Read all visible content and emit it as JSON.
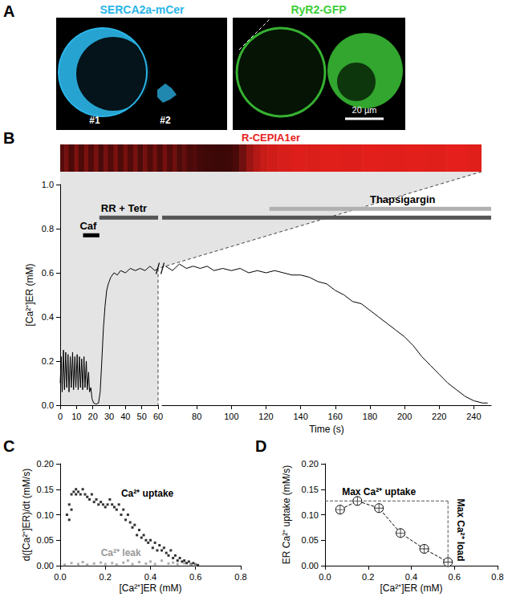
{
  "images": {
    "panel": "A",
    "left": {
      "label": "SERCA2a-mCer",
      "color": "#2bb5e8",
      "cells": [
        "#1",
        "#2"
      ]
    },
    "right": {
      "label": "RyR2-GFP",
      "color": "#3fcf3a",
      "scale_bar": "20 µm"
    }
  },
  "chart_data": [
    {
      "panel": "B",
      "type": "line",
      "kymograph": {
        "label": "R-CEPIA1er",
        "color": "#e8201c"
      },
      "x_break": 60,
      "xlabel": "Time (s)",
      "ylabel": "[Ca²⁺]ER (mM)",
      "xlim": [
        0,
        250
      ],
      "ylim": [
        0,
        1.0
      ],
      "xticks": [
        0,
        10,
        20,
        30,
        40,
        50,
        60,
        80,
        100,
        120,
        140,
        160,
        180,
        200,
        220,
        240
      ],
      "yticks": [
        {
          "value": 0,
          "label": "0.0"
        },
        {
          "value": 0.2,
          "label": "0.2"
        },
        {
          "value": 0.4,
          "label": "0.4"
        },
        {
          "value": 0.6,
          "label": "0.6"
        },
        {
          "value": 0.8,
          "label": "0.8"
        },
        {
          "value": 1.0,
          "label": "1.0"
        }
      ],
      "color": "#000000",
      "x": [
        0,
        0.6,
        1.2,
        2,
        2.6,
        3.4,
        4,
        4.8,
        5.4,
        6.2,
        6.8,
        7.6,
        8.2,
        9,
        9.6,
        10.4,
        11,
        11.8,
        12.4,
        13.2,
        13.8,
        14.6,
        15.2,
        16,
        16.6,
        17.4,
        18,
        18.8,
        19.5,
        20.5,
        22,
        23.5,
        24.5,
        25.5,
        26.5,
        27.5,
        28.5,
        29.5,
        31,
        33,
        35,
        37,
        40,
        43,
        46,
        49,
        52,
        55,
        58,
        60,
        62,
        66,
        70,
        74,
        78,
        82,
        86,
        90,
        95,
        100,
        105,
        110,
        115,
        120,
        125,
        130,
        135,
        140,
        145,
        150,
        155,
        160,
        165,
        170,
        175,
        180,
        185,
        190,
        195,
        200,
        205,
        210,
        215,
        220,
        225,
        230,
        235,
        240,
        245,
        248
      ],
      "values": [
        0.1,
        0.22,
        0.06,
        0.25,
        0.07,
        0.24,
        0.08,
        0.23,
        0.06,
        0.22,
        0.08,
        0.24,
        0.07,
        0.22,
        0.08,
        0.23,
        0.07,
        0.22,
        0.08,
        0.21,
        0.07,
        0.22,
        0.08,
        0.2,
        0.07,
        0.15,
        0.06,
        0.08,
        0.03,
        0.01,
        0.005,
        0.01,
        0.06,
        0.2,
        0.35,
        0.45,
        0.52,
        0.55,
        0.58,
        0.6,
        0.59,
        0.61,
        0.6,
        0.62,
        0.61,
        0.62,
        0.61,
        0.63,
        0.61,
        0.62,
        0.63,
        0.61,
        0.64,
        0.62,
        0.63,
        0.62,
        0.63,
        0.61,
        0.62,
        0.61,
        0.62,
        0.6,
        0.61,
        0.6,
        0.61,
        0.6,
        0.59,
        0.59,
        0.58,
        0.56,
        0.55,
        0.52,
        0.5,
        0.47,
        0.46,
        0.43,
        0.4,
        0.37,
        0.34,
        0.31,
        0.27,
        0.22,
        0.18,
        0.14,
        0.1,
        0.07,
        0.04,
        0.02,
        0.01,
        0.01
      ],
      "treatments": [
        {
          "label": "Caf",
          "start": 14,
          "end": 24,
          "y": 0.77,
          "label_x": 12,
          "color": "#000000"
        },
        {
          "label": "RR + Tetr",
          "start": 24,
          "end": 250,
          "y": 0.85,
          "label_x": 25,
          "color": "#555555"
        },
        {
          "label": "Thapsigargin",
          "start": 122,
          "end": 250,
          "y": 0.89,
          "label_x": 180,
          "color": "#b0b0b0"
        }
      ]
    },
    {
      "panel": "C",
      "type": "scatter",
      "xlabel": "[Ca²⁺]ER (mM)",
      "ylabel": "d([Ca²⁺]ER)/dt (mM/s)",
      "xlim": [
        0,
        0.8
      ],
      "ylim": [
        0,
        0.2
      ],
      "xticks": [
        {
          "value": 0,
          "label": "0.0"
        },
        {
          "value": 0.2,
          "label": "0.2"
        },
        {
          "value": 0.4,
          "label": "0.4"
        },
        {
          "value": 0.6,
          "label": "0.6"
        },
        {
          "value": 0.8,
          "label": "0.8"
        }
      ],
      "yticks": [
        {
          "value": 0,
          "label": "0.00"
        },
        {
          "value": 0.05,
          "label": "0.05"
        },
        {
          "value": 0.1,
          "label": "0.10"
        },
        {
          "value": 0.15,
          "label": "0.15"
        },
        {
          "value": 0.2,
          "label": "0.20"
        }
      ],
      "marker": "square",
      "series": [
        {
          "name": "Ca²⁺ uptake",
          "color": "#000000",
          "label_at": [
            0.27,
            0.142
          ],
          "x": [
            0.03,
            0.04,
            0.04,
            0.05,
            0.05,
            0.06,
            0.07,
            0.07,
            0.08,
            0.09,
            0.1,
            0.11,
            0.12,
            0.13,
            0.14,
            0.15,
            0.16,
            0.17,
            0.18,
            0.19,
            0.2,
            0.21,
            0.22,
            0.23,
            0.24,
            0.25,
            0.26,
            0.27,
            0.28,
            0.29,
            0.3,
            0.31,
            0.32,
            0.33,
            0.34,
            0.35,
            0.36,
            0.37,
            0.38,
            0.39,
            0.4,
            0.41,
            0.42,
            0.43,
            0.44,
            0.45,
            0.46,
            0.47,
            0.48,
            0.49,
            0.5,
            0.51,
            0.52,
            0.53,
            0.54,
            0.55,
            0.56,
            0.57,
            0.58,
            0.59,
            0.6,
            0.61
          ],
          "values": [
            0.1,
            0.09,
            0.12,
            0.14,
            0.11,
            0.145,
            0.15,
            0.14,
            0.145,
            0.14,
            0.15,
            0.14,
            0.135,
            0.13,
            0.14,
            0.125,
            0.13,
            0.12,
            0.125,
            0.12,
            0.115,
            0.12,
            0.13,
            0.12,
            0.115,
            0.11,
            0.12,
            0.1,
            0.11,
            0.09,
            0.1,
            0.085,
            0.075,
            0.08,
            0.06,
            0.07,
            0.055,
            0.06,
            0.05,
            0.045,
            0.05,
            0.035,
            0.045,
            0.03,
            0.04,
            0.03,
            0.035,
            0.025,
            0.02,
            0.03,
            0.015,
            0.02,
            0.01,
            0.015,
            0.008,
            0.01,
            0.005,
            0.008,
            0.003,
            0.005,
            0.002,
            0.001
          ]
        },
        {
          "name": "Ca²⁺ leak",
          "color": "#999999",
          "label_at": [
            0.18,
            0.025
          ],
          "x": [
            0.02,
            0.05,
            0.08,
            0.1,
            0.12,
            0.15,
            0.18,
            0.2,
            0.23,
            0.25,
            0.28,
            0.3,
            0.32,
            0.35,
            0.38,
            0.4,
            0.42,
            0.45,
            0.48,
            0.5,
            0.52,
            0.55,
            0.58,
            0.6
          ],
          "values": [
            0.002,
            0.005,
            0.003,
            0.007,
            0.002,
            0.004,
            0.006,
            0.003,
            0.005,
            0.002,
            0.006,
            0.01,
            0.003,
            0.007,
            0.004,
            0.008,
            0.003,
            0.01,
            0.004,
            0.006,
            0.003,
            0.005,
            0.002,
            0.001
          ]
        }
      ]
    },
    {
      "panel": "D",
      "type": "line",
      "xlabel": "[Ca²⁺]ER (mM)",
      "ylabel": "ER Ca²⁺ uptake (mM/s)",
      "xlim": [
        0,
        0.8
      ],
      "ylim": [
        0,
        0.2
      ],
      "xticks": [
        {
          "value": 0,
          "label": "0.0"
        },
        {
          "value": 0.2,
          "label": "0.2"
        },
        {
          "value": 0.4,
          "label": "0.4"
        },
        {
          "value": 0.6,
          "label": "0.6"
        },
        {
          "value": 0.8,
          "label": "0.8"
        }
      ],
      "yticks": [
        {
          "value": 0,
          "label": "0.00"
        },
        {
          "value": 0.05,
          "label": "0.05"
        },
        {
          "value": 0.1,
          "label": "0.10"
        },
        {
          "value": 0.15,
          "label": "0.15"
        },
        {
          "value": 0.2,
          "label": "0.20"
        }
      ],
      "series": [
        {
          "color": "#000000",
          "marker": "circle_cross",
          "line_style": "dashed",
          "x": [
            0.07,
            0.15,
            0.25,
            0.35,
            0.46,
            0.57
          ],
          "values": [
            0.11,
            0.127,
            0.113,
            0.064,
            0.033,
            0.007
          ]
        }
      ],
      "reference_lines": [
        {
          "x": [
            0,
            0.57
          ],
          "y": [
            0.127,
            0.127
          ]
        },
        {
          "x": [
            0.57,
            0.57
          ],
          "y": [
            0.127,
            0
          ]
        }
      ],
      "annotations": [
        {
          "text": "Max Ca²⁺ uptake",
          "x": 0.25,
          "y": 0.145
        },
        {
          "text": "Max Ca²⁺ load",
          "x": 0.63,
          "y": 0.07,
          "vertical": true
        }
      ]
    }
  ]
}
